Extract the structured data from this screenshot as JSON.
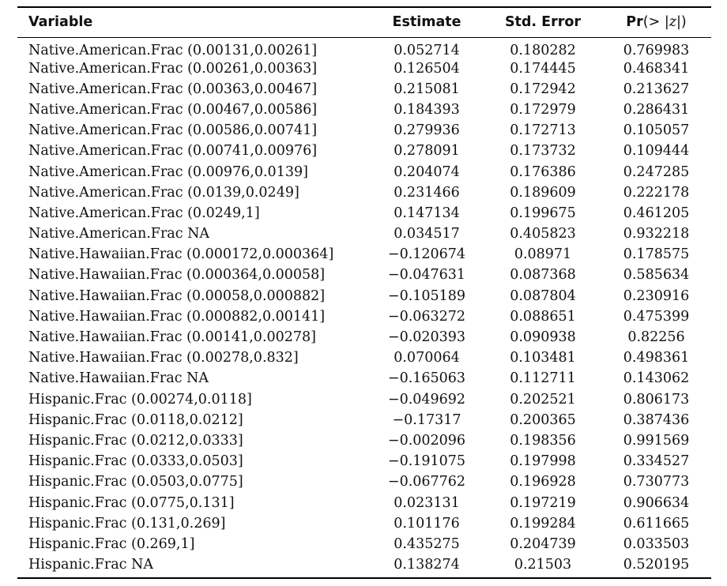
{
  "table": {
    "headers": {
      "variable": "Variable",
      "estimate": "Estimate",
      "std_error": "Std. Error",
      "pr_bold": "Pr",
      "pr_open": "(> |",
      "pr_z": "z",
      "pr_close": "|)"
    },
    "rows": [
      [
        "Native.American.Frac (0.00131,0.00261]",
        "0.052714",
        "0.180282",
        "0.769983"
      ],
      [
        "Native.American.Frac (0.00261,0.00363]",
        "0.126504",
        "0.174445",
        "0.468341"
      ],
      [
        "Native.American.Frac (0.00363,0.00467]",
        "0.215081",
        "0.172942",
        "0.213627"
      ],
      [
        "Native.American.Frac (0.00467,0.00586]",
        "0.184393",
        "0.172979",
        "0.286431"
      ],
      [
        "Native.American.Frac (0.00586,0.00741]",
        "0.279936",
        "0.172713",
        "0.105057"
      ],
      [
        "Native.American.Frac (0.00741,0.00976]",
        "0.278091",
        "0.173732",
        "0.109444"
      ],
      [
        "Native.American.Frac (0.00976,0.0139]",
        "0.204074",
        "0.176386",
        "0.247285"
      ],
      [
        "Native.American.Frac (0.0139,0.0249]",
        "0.231466",
        "0.189609",
        "0.222178"
      ],
      [
        "Native.American.Frac (0.0249,1]",
        "0.147134",
        "0.199675",
        "0.461205"
      ],
      [
        "Native.American.Frac NA",
        "0.034517",
        "0.405823",
        "0.932218"
      ],
      [
        "Native.Hawaiian.Frac (0.000172,0.000364]",
        "−0.120674",
        "0.08971",
        "0.178575"
      ],
      [
        "Native.Hawaiian.Frac (0.000364,0.00058]",
        "−0.047631",
        "0.087368",
        "0.585634"
      ],
      [
        "Native.Hawaiian.Frac (0.00058,0.000882]",
        "−0.105189",
        "0.087804",
        "0.230916"
      ],
      [
        "Native.Hawaiian.Frac (0.000882,0.00141]",
        "−0.063272",
        "0.088651",
        "0.475399"
      ],
      [
        "Native.Hawaiian.Frac (0.00141,0.00278]",
        "−0.020393",
        "0.090938",
        "0.82256"
      ],
      [
        "Native.Hawaiian.Frac (0.00278,0.832]",
        "0.070064",
        "0.103481",
        "0.498361"
      ],
      [
        "Native.Hawaiian.Frac NA",
        "−0.165063",
        "0.112711",
        "0.143062"
      ],
      [
        "Hispanic.Frac (0.00274,0.0118]",
        "−0.049692",
        "0.202521",
        "0.806173"
      ],
      [
        "Hispanic.Frac (0.0118,0.0212]",
        "−0.17317",
        "0.200365",
        "0.387436"
      ],
      [
        "Hispanic.Frac (0.0212,0.0333]",
        "−0.002096",
        "0.198356",
        "0.991569"
      ],
      [
        "Hispanic.Frac (0.0333,0.0503]",
        "−0.191075",
        "0.197998",
        "0.334527"
      ],
      [
        "Hispanic.Frac (0.0503,0.0775]",
        "−0.067762",
        "0.196928",
        "0.730773"
      ],
      [
        "Hispanic.Frac (0.0775,0.131]",
        "0.023131",
        "0.197219",
        "0.906634"
      ],
      [
        "Hispanic.Frac (0.131,0.269]",
        "0.101176",
        "0.199284",
        "0.611665"
      ],
      [
        "Hispanic.Frac (0.269,1]",
        "0.435275",
        "0.204739",
        "0.033503"
      ],
      [
        "Hispanic.Frac NA",
        "0.138274",
        "0.21503",
        "0.520195"
      ]
    ]
  }
}
